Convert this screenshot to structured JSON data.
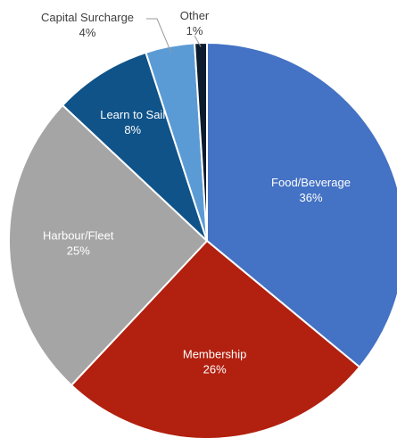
{
  "chart_data": {
    "type": "pie",
    "title": "",
    "start": "top",
    "direction": "clockwise",
    "slices": [
      {
        "name": "Food/Beverage",
        "value": 36,
        "label": "36%",
        "color": "#4472c4",
        "label_pos": "inside"
      },
      {
        "name": "Membership",
        "value": 26,
        "label": "26%",
        "color": "#b2200f",
        "label_pos": "inside"
      },
      {
        "name": "Harbour/Fleet",
        "value": 25,
        "label": "25%",
        "color": "#a5a5a5",
        "label_pos": "inside"
      },
      {
        "name": "Learn to Sail",
        "value": 8,
        "label": "8%",
        "color": "#0f5389",
        "label_pos": "inside"
      },
      {
        "name": "Capital Surcharge",
        "value": 4,
        "label": "4%",
        "color": "#5b9bd5",
        "label_pos": "outside"
      },
      {
        "name": "Other",
        "value": 1,
        "label": "1%",
        "color": "#0d1b2e",
        "label_pos": "outside"
      }
    ]
  }
}
